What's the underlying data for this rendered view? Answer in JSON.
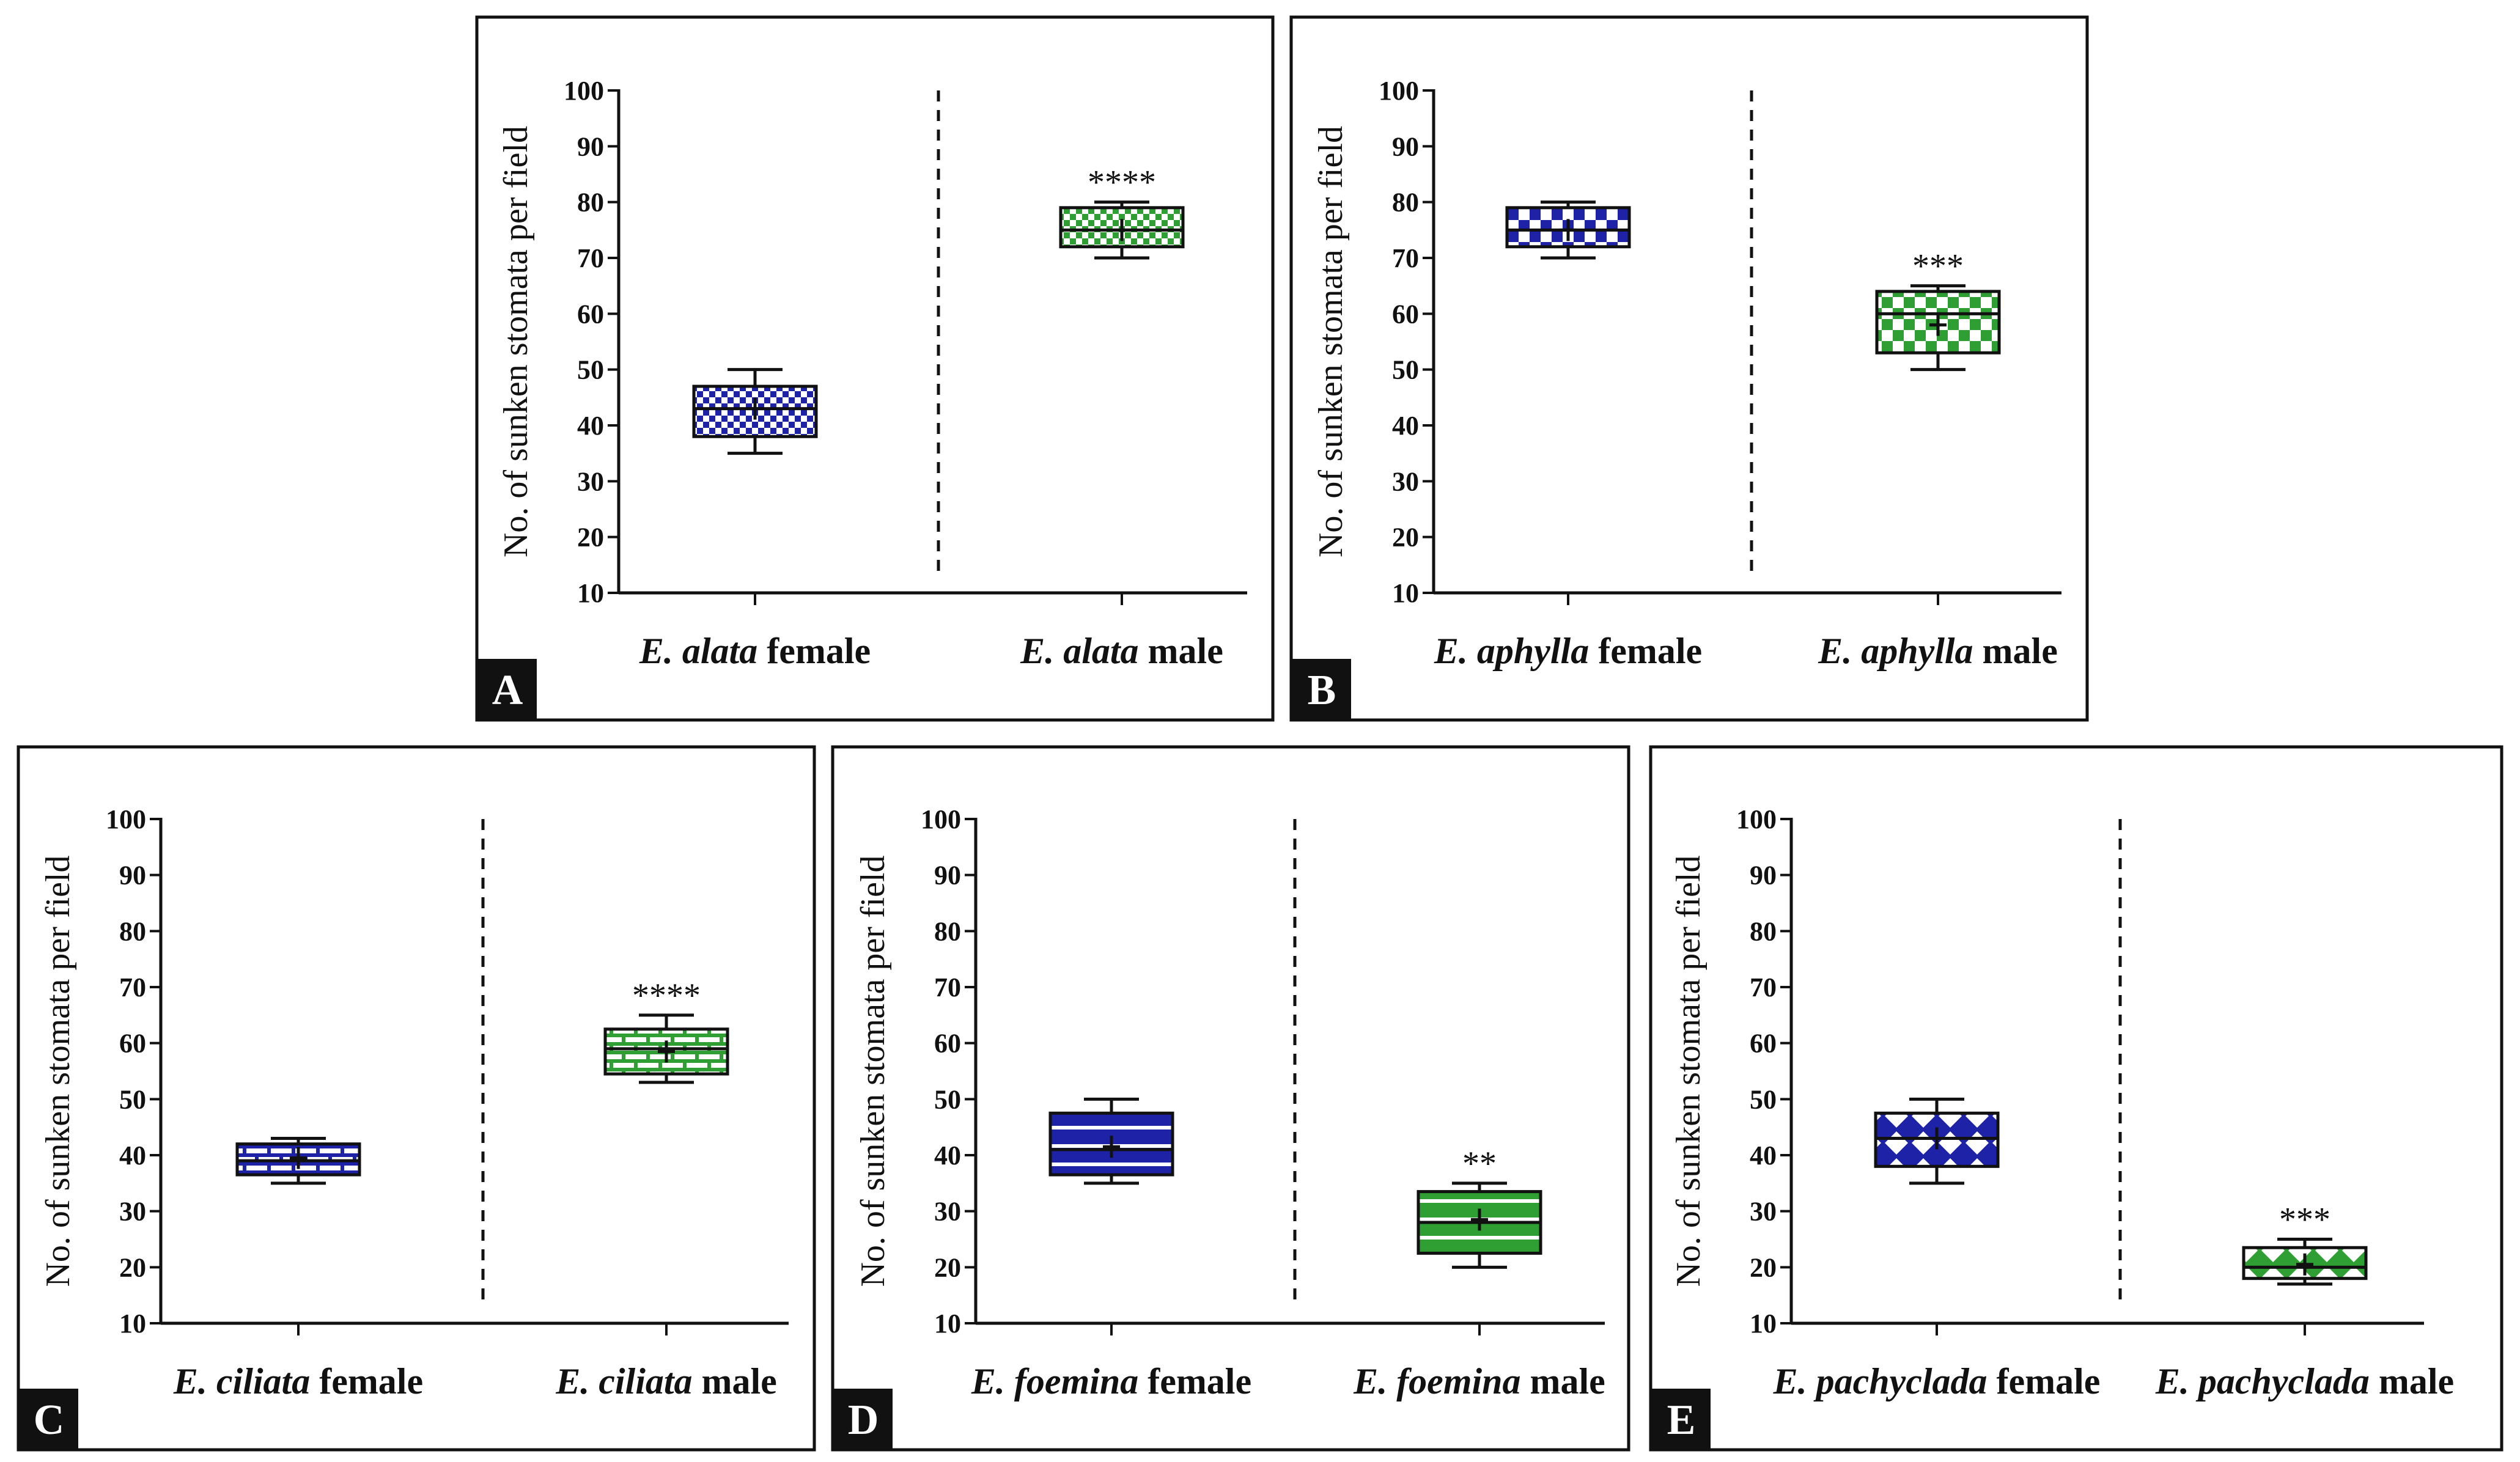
{
  "figure": {
    "ylabel": "No. of sunken stomata per field"
  },
  "chart_data": [
    {
      "panel": "A",
      "type": "box",
      "ylim": [
        10,
        100
      ],
      "yticks": [
        10,
        20,
        30,
        40,
        50,
        60,
        70,
        80,
        90,
        100
      ],
      "ylabel": "No. of sunken stomata per field",
      "groups": [
        {
          "genus": "E.",
          "species": "alata",
          "sex": "female",
          "min": 35,
          "q1": 38,
          "median": 43,
          "q3": 47,
          "max": 50,
          "mean": 43,
          "significance": "",
          "color": "#1d22a6",
          "pattern": "checker"
        },
        {
          "genus": "E.",
          "species": "alata",
          "sex": "male",
          "min": 70,
          "q1": 72,
          "median": 75,
          "q3": 79,
          "max": 80,
          "mean": 75,
          "significance": "****",
          "color": "#2f9e33",
          "pattern": "checker"
        }
      ]
    },
    {
      "panel": "B",
      "type": "box",
      "ylim": [
        10,
        100
      ],
      "yticks": [
        10,
        20,
        30,
        40,
        50,
        60,
        70,
        80,
        90,
        100
      ],
      "ylabel": "No. of sunken stomata per field",
      "groups": [
        {
          "genus": "E.",
          "species": "aphylla",
          "sex": "female",
          "min": 70,
          "q1": 72,
          "median": 75,
          "q3": 79,
          "max": 80,
          "mean": 75,
          "significance": "",
          "color": "#1d22a6",
          "pattern": "bigchecker"
        },
        {
          "genus": "E.",
          "species": "aphylla",
          "sex": "male",
          "min": 50,
          "q1": 53,
          "median": 60,
          "q3": 64,
          "max": 65,
          "mean": 58,
          "significance": "***",
          "color": "#2f9e33",
          "pattern": "bigchecker"
        }
      ]
    },
    {
      "panel": "C",
      "type": "box",
      "ylim": [
        10,
        100
      ],
      "yticks": [
        10,
        20,
        30,
        40,
        50,
        60,
        70,
        80,
        90,
        100
      ],
      "ylabel": "No. of sunken stomata per field",
      "groups": [
        {
          "genus": "E.",
          "species": "ciliata",
          "sex": "female",
          "min": 35,
          "q1": 36.5,
          "median": 39,
          "q3": 42,
          "max": 43,
          "mean": 39.5,
          "significance": "",
          "color": "#1d22a6",
          "pattern": "brick"
        },
        {
          "genus": "E.",
          "species": "ciliata",
          "sex": "male",
          "min": 53,
          "q1": 54.5,
          "median": 59,
          "q3": 62.5,
          "max": 65,
          "mean": 58.5,
          "significance": "****",
          "color": "#2f9e33",
          "pattern": "brick"
        }
      ]
    },
    {
      "panel": "D",
      "type": "box",
      "ylim": [
        10,
        100
      ],
      "yticks": [
        10,
        20,
        30,
        40,
        50,
        60,
        70,
        80,
        90,
        100
      ],
      "ylabel": "No. of sunken stomata per field",
      "groups": [
        {
          "genus": "E.",
          "species": "foemina",
          "sex": "female",
          "min": 35,
          "q1": 36.5,
          "median": 41,
          "q3": 47.5,
          "max": 50,
          "mean": 41.5,
          "significance": "",
          "color": "#1d22a6",
          "pattern": "stripes"
        },
        {
          "genus": "E.",
          "species": "foemina",
          "sex": "male",
          "min": 20,
          "q1": 22.5,
          "median": 28,
          "q3": 33.5,
          "max": 35,
          "mean": 28.5,
          "significance": "**",
          "color": "#2f9e33",
          "pattern": "stripes"
        }
      ]
    },
    {
      "panel": "E",
      "type": "box",
      "ylim": [
        10,
        100
      ],
      "yticks": [
        10,
        20,
        30,
        40,
        50,
        60,
        70,
        80,
        90,
        100
      ],
      "ylabel": "No. of sunken stomata per field",
      "groups": [
        {
          "genus": "E.",
          "species": "pachyclada",
          "sex": "female",
          "min": 35,
          "q1": 38,
          "median": 43,
          "q3": 47.5,
          "max": 50,
          "mean": 43,
          "significance": "",
          "color": "#1d22a6",
          "pattern": "diamond"
        },
        {
          "genus": "E.",
          "species": "pachyclada",
          "sex": "male",
          "min": 17,
          "q1": 18,
          "median": 20,
          "q3": 23.5,
          "max": 25,
          "mean": 20.5,
          "significance": "***",
          "color": "#2f9e33",
          "pattern": "diamond"
        }
      ]
    }
  ]
}
